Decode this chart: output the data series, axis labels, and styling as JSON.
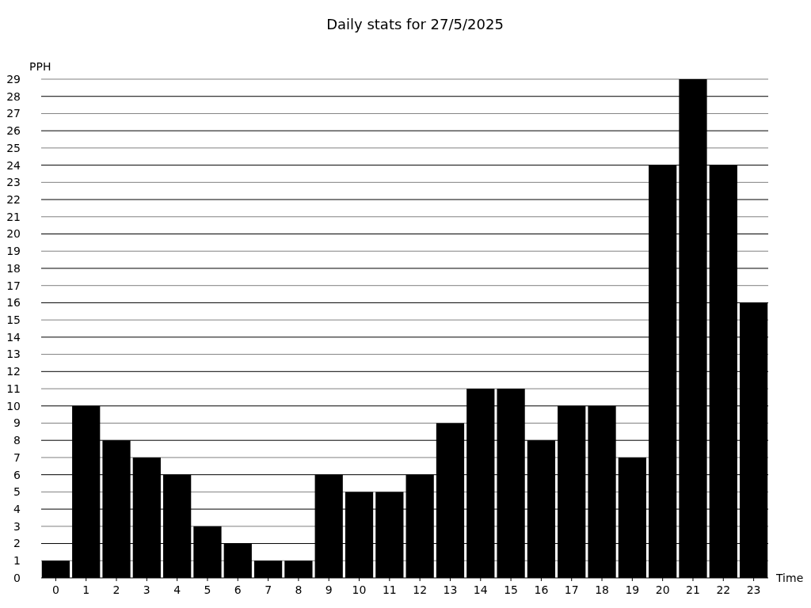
{
  "chart_data": {
    "type": "bar",
    "title": "Daily stats for 27/5/2025",
    "xlabel": "Time",
    "ylabel": "PPH",
    "categories": [
      "0",
      "1",
      "2",
      "3",
      "4",
      "5",
      "6",
      "7",
      "8",
      "9",
      "10",
      "11",
      "12",
      "13",
      "14",
      "15",
      "16",
      "17",
      "18",
      "19",
      "20",
      "21",
      "22",
      "23"
    ],
    "values": [
      1,
      10,
      8,
      7,
      6,
      3,
      2,
      1,
      1,
      6,
      5,
      5,
      6,
      9,
      11,
      11,
      8,
      10,
      10,
      7,
      24,
      29,
      24,
      16
    ],
    "color": "#000000",
    "ylim": [
      0,
      29
    ],
    "yticks": [
      0,
      1,
      2,
      3,
      4,
      5,
      6,
      7,
      8,
      9,
      10,
      11,
      12,
      13,
      14,
      15,
      16,
      17,
      18,
      19,
      20,
      21,
      22,
      23,
      24,
      25,
      26,
      27,
      28,
      29
    ],
    "grid": "y"
  }
}
